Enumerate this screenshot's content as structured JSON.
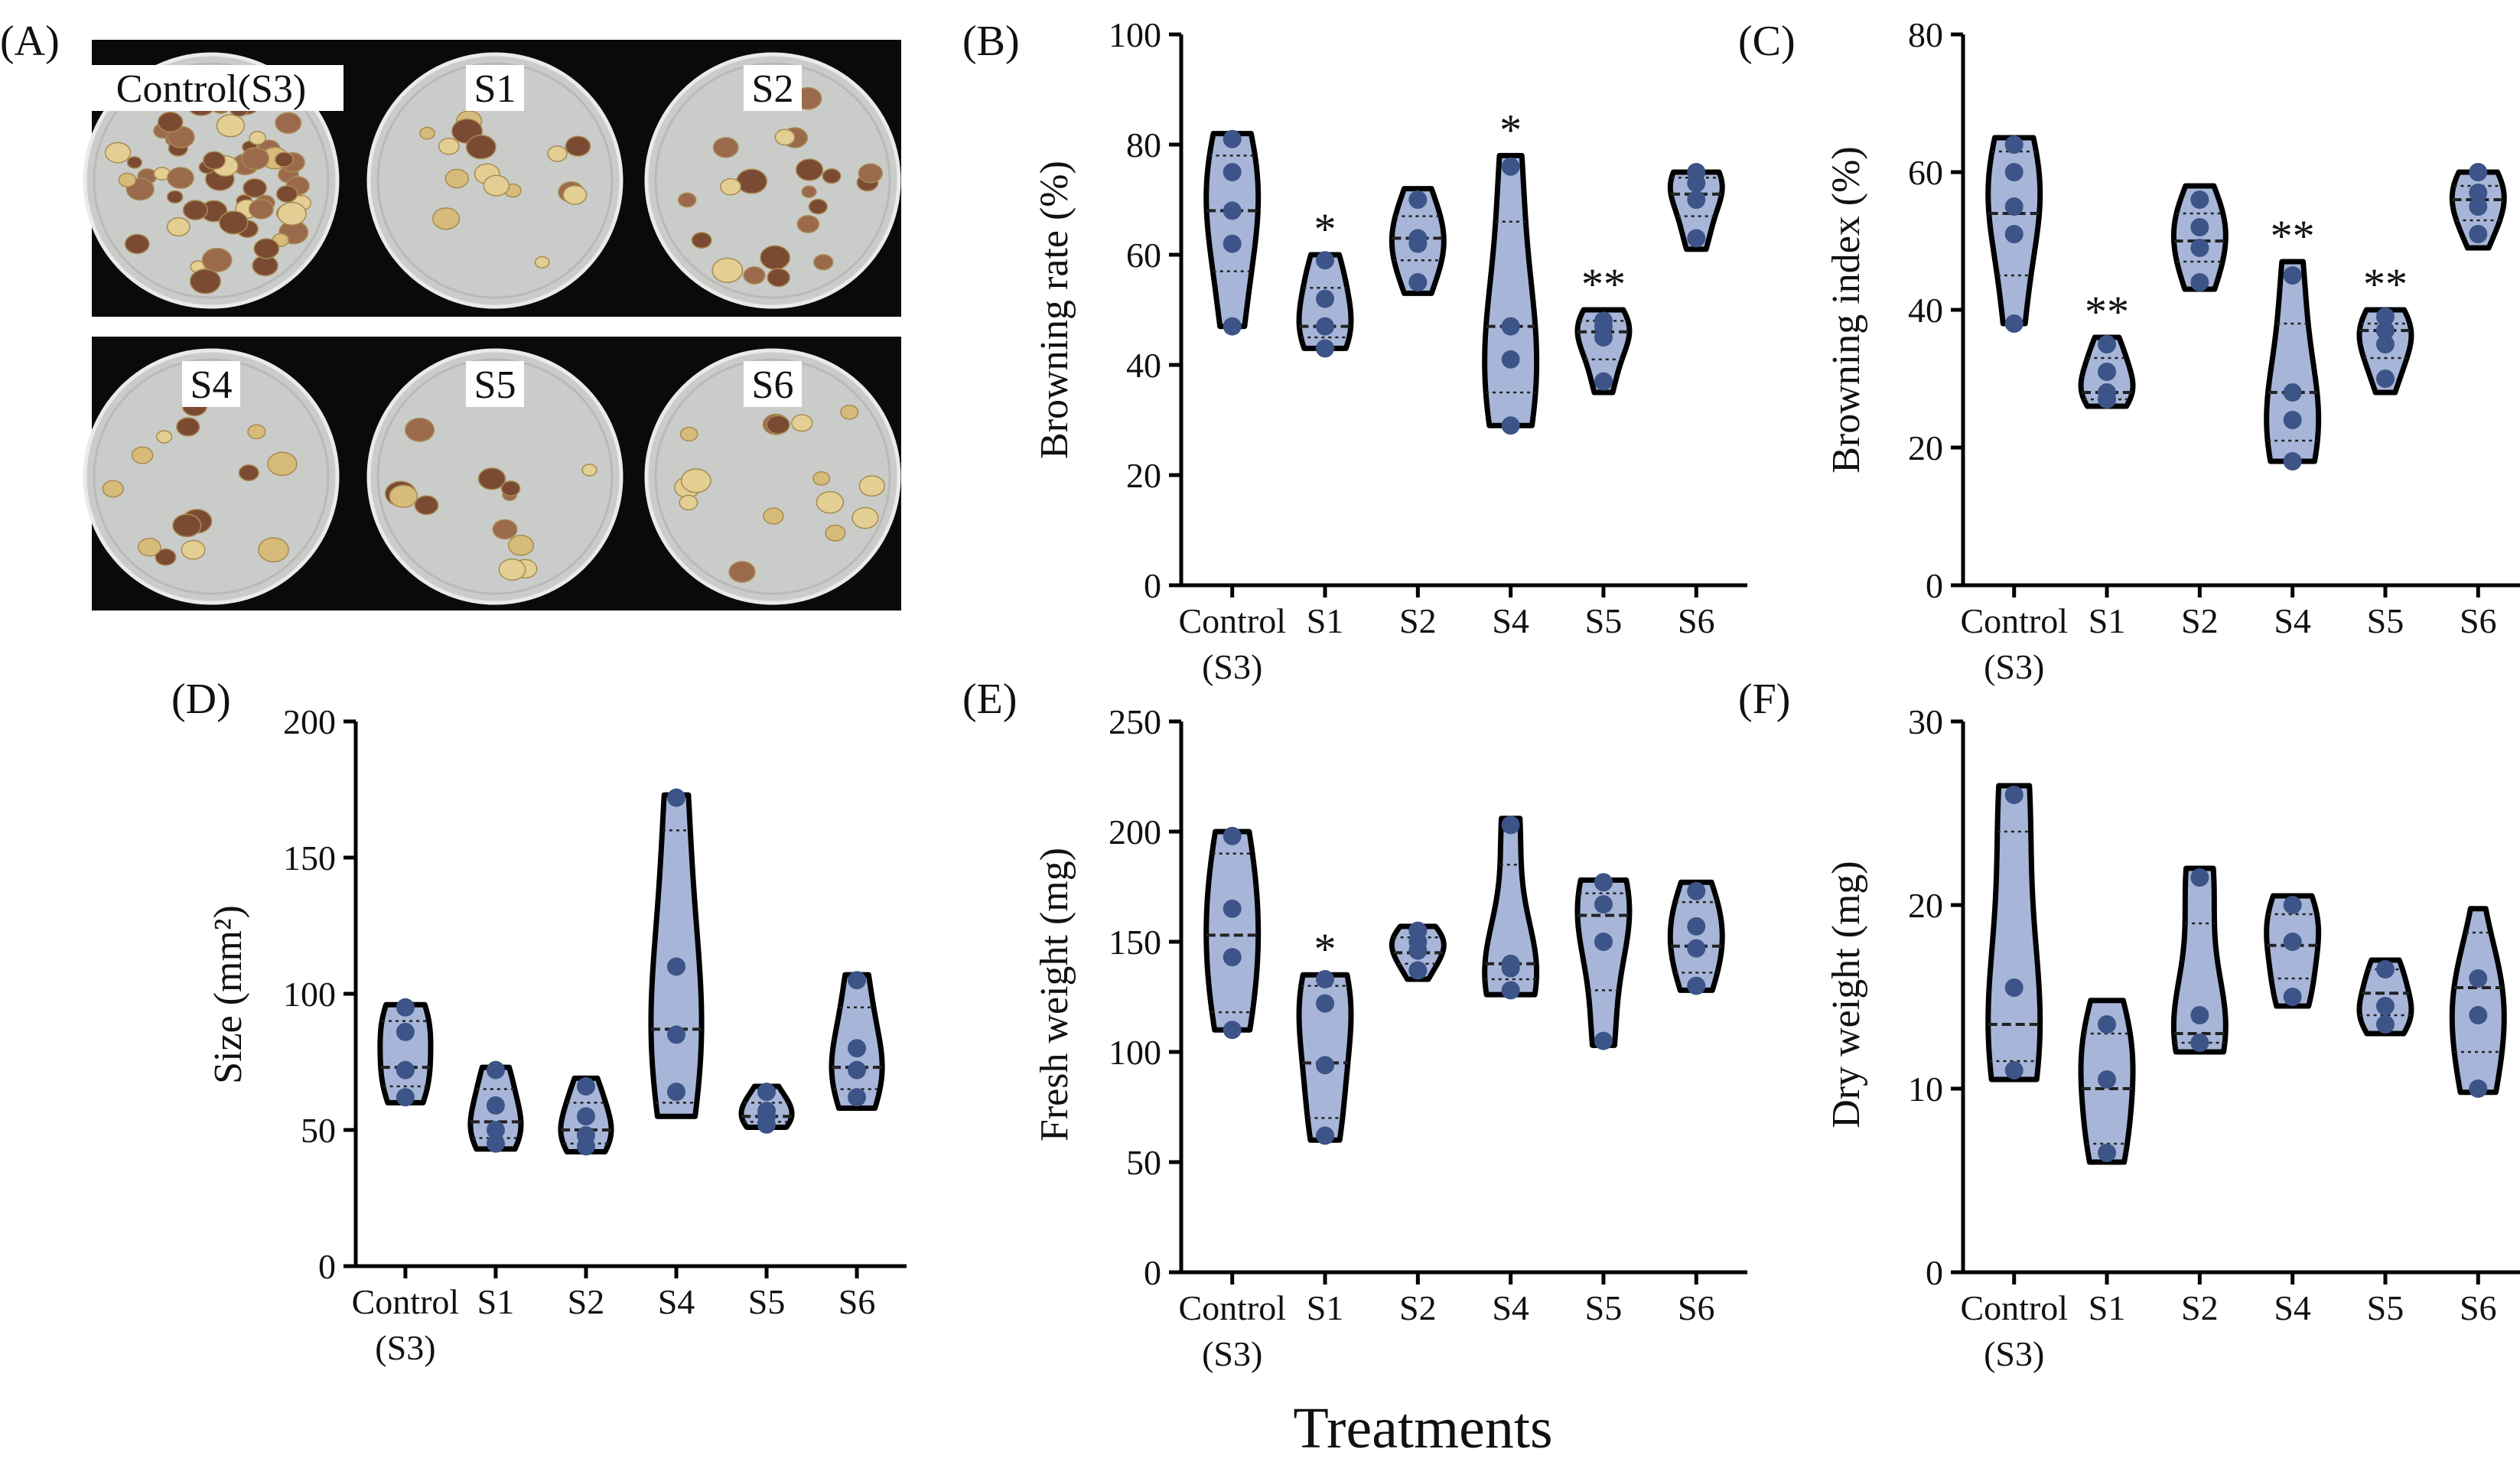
{
  "figure": {
    "xlabel": "Treatments"
  },
  "photo_panel": {
    "label": "(A)",
    "dishes": [
      {
        "label": "Control(S3)",
        "callus_count": 60,
        "browning": 0.75
      },
      {
        "label": "S1",
        "callus_count": 16,
        "browning": 0.35
      },
      {
        "label": "S2",
        "callus_count": 20,
        "browning": 0.45
      },
      {
        "label": "S4",
        "callus_count": 14,
        "browning": 0.3
      },
      {
        "label": "S5",
        "callus_count": 13,
        "browning": 0.2
      },
      {
        "label": "S6",
        "callus_count": 15,
        "browning": 0.25
      }
    ]
  },
  "colors": {
    "violin_fill": "#a7b6d8",
    "violin_stroke": "#000000",
    "point": "#3d5488",
    "plate_background": "#0a0a0a",
    "dish": "#c9ccc9"
  },
  "chart_data": [
    {
      "panel": "(B)",
      "type": "violin",
      "ylabel": "Browning rate (%)",
      "ylim": [
        0,
        100
      ],
      "yticks": [
        0,
        20,
        40,
        60,
        80,
        100
      ],
      "categories": [
        "Control\n(S3)",
        "S1",
        "S2",
        "S4",
        "S5",
        "S6"
      ],
      "groups": [
        {
          "points": [
            47,
            62,
            68,
            75,
            81
          ],
          "min": 47,
          "max": 82,
          "median": 68,
          "q1": 57,
          "q3": 78,
          "sig": ""
        },
        {
          "points": [
            43,
            47,
            52,
            59
          ],
          "min": 43,
          "max": 60,
          "median": 47,
          "q1": 45,
          "q3": 54,
          "sig": "*"
        },
        {
          "points": [
            55,
            62,
            63,
            70
          ],
          "min": 53,
          "max": 72,
          "median": 63,
          "q1": 59,
          "q3": 67,
          "sig": ""
        },
        {
          "points": [
            29,
            41,
            47,
            76
          ],
          "min": 29,
          "max": 78,
          "median": 47,
          "q1": 35,
          "q3": 66,
          "sig": "*"
        },
        {
          "points": [
            37,
            45,
            47,
            48
          ],
          "min": 35,
          "max": 50,
          "median": 46,
          "q1": 41,
          "q3": 48,
          "sig": "**"
        },
        {
          "points": [
            63,
            70,
            73,
            75
          ],
          "min": 61,
          "max": 75,
          "median": 71,
          "q1": 67,
          "q3": 74,
          "sig": ""
        }
      ]
    },
    {
      "panel": "(C)",
      "type": "violin",
      "ylabel": "Browning index (%)",
      "ylim": [
        0,
        80
      ],
      "yticks": [
        0,
        20,
        40,
        60,
        80
      ],
      "categories": [
        "Control\n(S3)",
        "S1",
        "S2",
        "S4",
        "S5",
        "S6"
      ],
      "groups": [
        {
          "points": [
            38,
            51,
            55,
            60,
            64
          ],
          "min": 38,
          "max": 65,
          "median": 54,
          "q1": 45,
          "q3": 63,
          "sig": ""
        },
        {
          "points": [
            27,
            28,
            31,
            35
          ],
          "min": 26,
          "max": 36,
          "median": 28,
          "q1": 27,
          "q3": 33,
          "sig": "**"
        },
        {
          "points": [
            44,
            49,
            52,
            56
          ],
          "min": 43,
          "max": 58,
          "median": 50,
          "q1": 47,
          "q3": 54,
          "sig": ""
        },
        {
          "points": [
            18,
            24,
            28,
            45
          ],
          "min": 18,
          "max": 47,
          "median": 28,
          "q1": 21,
          "q3": 38,
          "sig": "**"
        },
        {
          "points": [
            30,
            35,
            37,
            39
          ],
          "min": 28,
          "max": 40,
          "median": 37,
          "q1": 33,
          "q3": 38,
          "sig": "**"
        },
        {
          "points": [
            51,
            55,
            57,
            60
          ],
          "min": 49,
          "max": 60,
          "median": 56,
          "q1": 53,
          "q3": 58,
          "sig": ""
        }
      ]
    },
    {
      "panel": "(D)",
      "type": "violin",
      "ylabel": "Size (mm²)",
      "ylim": [
        0,
        200
      ],
      "yticks": [
        0,
        50,
        100,
        150,
        200
      ],
      "categories": [
        "Control\n(S3)",
        "S1",
        "S2",
        "S4",
        "S5",
        "S6"
      ],
      "groups": [
        {
          "points": [
            62,
            72,
            86,
            95
          ],
          "min": 60,
          "max": 96,
          "median": 73,
          "q1": 66,
          "q3": 90,
          "sig": ""
        },
        {
          "points": [
            45,
            50,
            59,
            72
          ],
          "min": 43,
          "max": 73,
          "median": 53,
          "q1": 47,
          "q3": 65,
          "sig": ""
        },
        {
          "points": [
            44,
            48,
            55,
            66
          ],
          "min": 42,
          "max": 69,
          "median": 50,
          "q1": 45,
          "q3": 60,
          "sig": ""
        },
        {
          "points": [
            64,
            85,
            110,
            172
          ],
          "min": 55,
          "max": 173,
          "median": 87,
          "q1": 60,
          "q3": 160,
          "sig": ""
        },
        {
          "points": [
            52,
            55,
            57,
            64
          ],
          "min": 51,
          "max": 66,
          "median": 55,
          "q1": 53,
          "q3": 60,
          "sig": ""
        },
        {
          "points": [
            62,
            72,
            80,
            105
          ],
          "min": 58,
          "max": 107,
          "median": 73,
          "q1": 65,
          "q3": 95,
          "sig": ""
        }
      ]
    },
    {
      "panel": "(E)",
      "type": "violin",
      "ylabel": "Fresh weight (mg)",
      "ylim": [
        0,
        250
      ],
      "yticks": [
        0,
        50,
        100,
        150,
        200,
        250
      ],
      "categories": [
        "Control\n(S3)",
        "S1",
        "S2",
        "S4",
        "S5",
        "S6"
      ],
      "groups": [
        {
          "points": [
            110,
            143,
            165,
            198
          ],
          "min": 110,
          "max": 200,
          "median": 153,
          "q1": 118,
          "q3": 190,
          "sig": ""
        },
        {
          "points": [
            62,
            94,
            122,
            133
          ],
          "min": 60,
          "max": 135,
          "median": 95,
          "q1": 70,
          "q3": 130,
          "sig": "*"
        },
        {
          "points": [
            137,
            146,
            150,
            155
          ],
          "min": 133,
          "max": 157,
          "median": 145,
          "q1": 140,
          "q3": 152,
          "sig": ""
        },
        {
          "points": [
            128,
            138,
            140,
            203
          ],
          "min": 126,
          "max": 206,
          "median": 140,
          "q1": 133,
          "q3": 185,
          "sig": ""
        },
        {
          "points": [
            105,
            150,
            167,
            177
          ],
          "min": 103,
          "max": 178,
          "median": 162,
          "q1": 128,
          "q3": 172,
          "sig": ""
        },
        {
          "points": [
            130,
            147,
            157,
            173
          ],
          "min": 128,
          "max": 177,
          "median": 148,
          "q1": 136,
          "q3": 168,
          "sig": ""
        }
      ]
    },
    {
      "panel": "(F)",
      "type": "violin",
      "ylabel": "Dry weight (mg)",
      "ylim": [
        0,
        30
      ],
      "yticks": [
        0,
        10,
        20,
        30
      ],
      "categories": [
        "Control\n(S3)",
        "S1",
        "S2",
        "S4",
        "S5",
        "S6"
      ],
      "groups": [
        {
          "points": [
            11,
            15.5,
            26
          ],
          "min": 10.5,
          "max": 26.5,
          "median": 13.5,
          "q1": 11.5,
          "q3": 24,
          "sig": ""
        },
        {
          "points": [
            6.5,
            10.5,
            13.5
          ],
          "min": 6,
          "max": 14.8,
          "median": 10,
          "q1": 7,
          "q3": 13,
          "sig": ""
        },
        {
          "points": [
            12.5,
            14,
            21.5
          ],
          "min": 12,
          "max": 22,
          "median": 13,
          "q1": 12.5,
          "q3": 19,
          "sig": ""
        },
        {
          "points": [
            15,
            18,
            20
          ],
          "min": 14.5,
          "max": 20.5,
          "median": 17.8,
          "q1": 16,
          "q3": 19.5,
          "sig": ""
        },
        {
          "points": [
            13.5,
            14.5,
            16.5
          ],
          "min": 13,
          "max": 17,
          "median": 15.2,
          "q1": 14,
          "q3": 16.5,
          "sig": ""
        },
        {
          "points": [
            10,
            14,
            16
          ],
          "min": 9.8,
          "max": 19.8,
          "median": 15.5,
          "q1": 12,
          "q3": 18.5,
          "sig": ""
        }
      ]
    }
  ]
}
